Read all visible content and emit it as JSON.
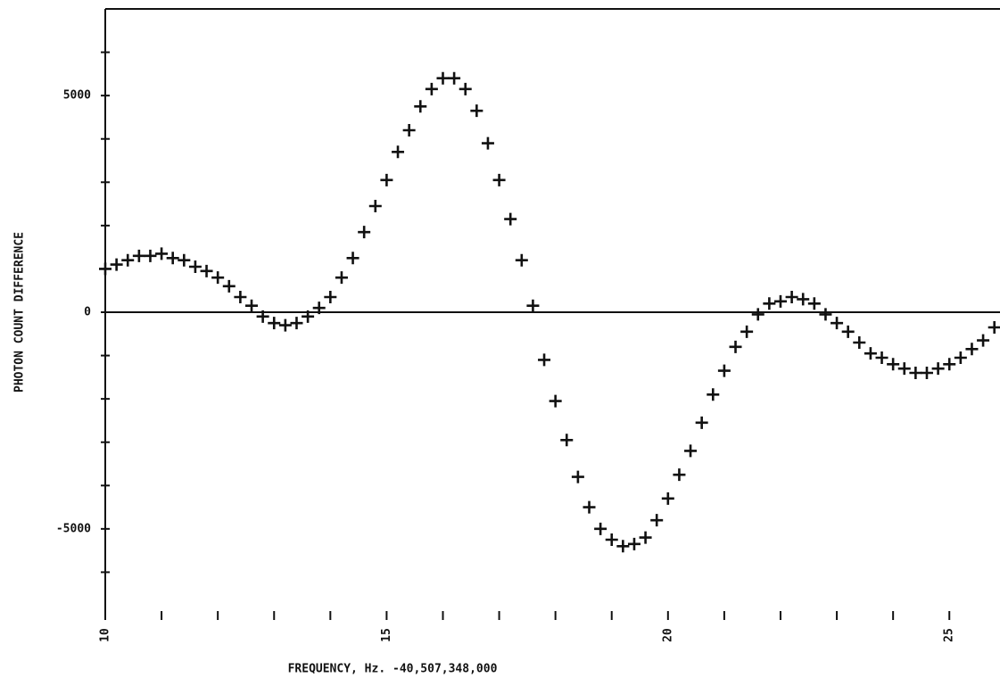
{
  "chart_data": {
    "type": "scatter",
    "xlabel": "FREQUENCY, Hz. -40,507,348,000",
    "ylabel": "PHOTON COUNT DIFFERENCE",
    "xlim": [
      10,
      25.9
    ],
    "ylim": [
      -7000,
      7000
    ],
    "xticks": [
      10,
      15,
      20,
      25
    ],
    "x_minor_ticks": [
      10,
      11,
      12,
      13,
      14,
      15,
      16,
      17,
      18,
      19,
      20,
      21,
      22,
      23,
      24,
      25
    ],
    "yticks": [
      -5000,
      0,
      5000
    ],
    "y_minor_ticks": [
      -6000,
      -5000,
      -4000,
      -3000,
      -2000,
      -1000,
      0,
      1000,
      2000,
      3000,
      4000,
      5000,
      6000
    ],
    "hlines": [
      0
    ],
    "color": "#111111",
    "series": [
      {
        "x": [
          10,
          10.2,
          10.4,
          10.6,
          10.8,
          11,
          11.2,
          11.4,
          11.6,
          11.8,
          12,
          12.2,
          12.4,
          12.6,
          12.8,
          13,
          13.2,
          13.4,
          13.6,
          13.8,
          14,
          14.2,
          14.4,
          14.6,
          14.8,
          15,
          15.2,
          15.4,
          15.6,
          15.8,
          16,
          16.2,
          16.4,
          16.6,
          16.8,
          17,
          17.2,
          17.4,
          17.6,
          17.8,
          18,
          18.2,
          18.4,
          18.6,
          18.8,
          19,
          19.2,
          19.4,
          19.6,
          19.8,
          20,
          20.2,
          20.4,
          20.6,
          20.8,
          21,
          21.2,
          21.4,
          21.6,
          21.8,
          22,
          22.2,
          22.4,
          22.6,
          22.8,
          23,
          23.2,
          23.4,
          23.6,
          23.8,
          24,
          24.2,
          24.4,
          24.6,
          24.8,
          25,
          25.2,
          25.4,
          25.6,
          25.8
        ],
        "values": [
          1000,
          1100,
          1200,
          1300,
          1300,
          1350,
          1250,
          1200,
          1050,
          950,
          800,
          600,
          350,
          150,
          -100,
          -250,
          -300,
          -250,
          -100,
          100,
          350,
          800,
          1250,
          1850,
          2450,
          3050,
          3700,
          4200,
          4750,
          5150,
          5400,
          5400,
          5150,
          4650,
          3900,
          3050,
          2150,
          1200,
          150,
          -1100,
          -2050,
          -2950,
          -3800,
          -4500,
          -5000,
          -5250,
          -5400,
          -5350,
          -5200,
          -4800,
          -4300,
          -3750,
          -3200,
          -2550,
          -1900,
          -1350,
          -800,
          -450,
          -50,
          200,
          250,
          350,
          300,
          200,
          -50,
          -250,
          -450,
          -700,
          -950,
          -1050,
          -1200,
          -1300,
          -1400,
          -1400,
          -1300,
          -1200,
          -1050,
          -850,
          -650,
          -350
        ]
      }
    ]
  }
}
